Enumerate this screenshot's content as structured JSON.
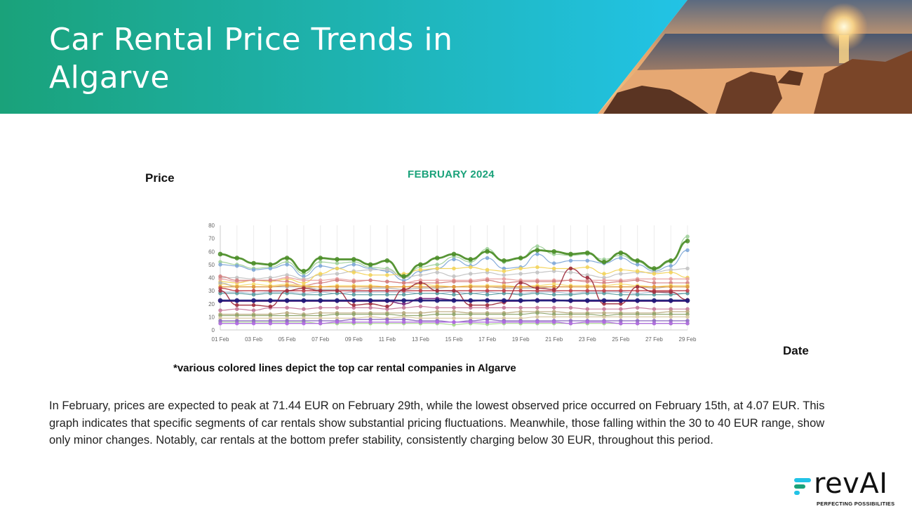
{
  "header": {
    "title": "Car Rental Price Trends in Algarve",
    "colors": {
      "gradient_start": "#1aa27a",
      "gradient_end": "#22c3e6"
    },
    "photo": "beach-sunset-photo"
  },
  "axis_labels": {
    "price": "Price",
    "date": "Date"
  },
  "footnote": "*various colored lines depict the top car rental companies in  Algarve",
  "summary": "In February, prices are expected to peak at 71.44 EUR on February 29th, while the lowest observed price occurred on February 15th, at 4.07 EUR. This graph indicates that specific segments of car rentals show substantial pricing fluctuations. Meanwhile, those falling within the 30 to 40 EUR range, show only minor changes. Notably, car rentals at the bottom prefer stability, consistently charging below 30 EUR, throughout this period.",
  "logo": {
    "word": "revAI",
    "tagline": "PERFECTING POSSIBILITIES",
    "mark_color": "#22c3e6",
    "mark_color_2": "#1aa27a"
  },
  "chart_data": {
    "type": "line",
    "title": "FEBRUARY 2024",
    "xlabel": "",
    "ylabel": "",
    "x": [
      "01 Feb",
      "02 Feb",
      "03 Feb",
      "04 Feb",
      "05 Feb",
      "06 Feb",
      "07 Feb",
      "08 Feb",
      "09 Feb",
      "10 Feb",
      "11 Feb",
      "12 Feb",
      "13 Feb",
      "14 Feb",
      "15 Feb",
      "16 Feb",
      "17 Feb",
      "18 Feb",
      "19 Feb",
      "20 Feb",
      "21 Feb",
      "22 Feb",
      "23 Feb",
      "24 Feb",
      "25 Feb",
      "26 Feb",
      "27 Feb",
      "28 Feb",
      "29 Feb"
    ],
    "x_ticks": [
      "01 Feb",
      "03 Feb",
      "05 Feb",
      "07 Feb",
      "09 Feb",
      "11 Feb",
      "13 Feb",
      "15 Feb",
      "17 Feb",
      "19 Feb",
      "21 Feb",
      "23 Feb",
      "25 Feb",
      "27 Feb",
      "29 Feb"
    ],
    "ylim": [
      0,
      80
    ],
    "y_ticks": [
      0,
      10,
      20,
      30,
      40,
      50,
      60,
      70,
      80
    ],
    "grid": "vertical",
    "legend": "none",
    "series": [
      {
        "color": "#4e8f2a",
        "width": 2.8,
        "values": [
          58,
          55,
          51,
          50,
          55,
          45,
          55,
          54,
          54,
          50,
          53,
          41,
          50,
          55,
          58,
          54,
          60,
          53,
          55,
          61,
          60,
          58,
          59,
          52,
          59,
          53,
          47,
          53,
          68
        ]
      },
      {
        "color": "#9fd09a",
        "width": 1.2,
        "values": [
          52,
          50,
          47,
          48,
          52,
          43,
          52,
          51,
          52,
          48,
          47,
          40,
          48,
          50,
          56,
          52,
          62,
          52,
          55,
          64,
          58,
          57,
          58,
          54,
          57,
          52,
          46,
          52,
          71.44
        ]
      },
      {
        "color": "#7fa8d8",
        "width": 1.2,
        "values": [
          50,
          49,
          46,
          47,
          50,
          41,
          49,
          47,
          50,
          47,
          45,
          38,
          45,
          47,
          54,
          49,
          55,
          47,
          48,
          58,
          51,
          53,
          53,
          51,
          55,
          50,
          45,
          49,
          61
        ]
      },
      {
        "color": "#c3c3c3",
        "width": 1.2,
        "values": [
          40,
          40,
          39,
          40,
          42,
          39,
          42,
          43,
          45,
          46,
          46,
          40,
          42,
          44,
          41,
          43,
          44,
          42,
          43,
          44,
          45,
          44,
          42,
          40,
          43,
          44,
          44,
          46,
          47
        ]
      },
      {
        "color": "#f2d35a",
        "width": 1.2,
        "values": [
          37,
          36,
          38,
          37,
          39,
          36,
          43,
          47,
          44,
          42,
          42,
          43,
          46,
          47,
          47,
          48,
          46,
          45,
          47,
          48,
          47,
          47,
          48,
          43,
          46,
          45,
          43,
          44,
          40
        ]
      },
      {
        "color": "#e8a0a0",
        "width": 1.2,
        "values": [
          39,
          37,
          38,
          38,
          40,
          38,
          38,
          39,
          38,
          38,
          37,
          36,
          38,
          38,
          38,
          38,
          39,
          39,
          38,
          38,
          38,
          38,
          38,
          38,
          38,
          39,
          39,
          39,
          39
        ]
      },
      {
        "color": "#d47f7f",
        "width": 1.2,
        "values": [
          41,
          38,
          38,
          38,
          37,
          34,
          36,
          38,
          37,
          38,
          37,
          36,
          36,
          36,
          37,
          37,
          38,
          36,
          37,
          37,
          37,
          38,
          37,
          36,
          37,
          38,
          36,
          36,
          36
        ]
      },
      {
        "color": "#e39a3a",
        "width": 1.4,
        "values": [
          33,
          33,
          33,
          33,
          34,
          33,
          33,
          33,
          33,
          33,
          33,
          33,
          33,
          33,
          33,
          33,
          33,
          33,
          33,
          33,
          33,
          33,
          33,
          33,
          33,
          33,
          33,
          33,
          33
        ]
      },
      {
        "color": "#f5dc6e",
        "width": 1.2,
        "values": [
          35,
          34,
          35,
          34,
          35,
          34,
          33,
          34,
          34,
          34,
          33,
          33,
          35,
          34,
          33,
          34,
          34,
          34,
          33,
          34,
          35,
          34,
          34,
          34,
          35,
          34,
          33,
          34,
          34
        ]
      },
      {
        "color": "#b0b0b0",
        "width": 1.2,
        "values": [
          36,
          33,
          33,
          33,
          33,
          33,
          31,
          31,
          31,
          32,
          32,
          31,
          32,
          32,
          33,
          33,
          33,
          32,
          32,
          32,
          33,
          33,
          33,
          33,
          33,
          33,
          32,
          33,
          33
        ]
      },
      {
        "color": "#c0404a",
        "width": 1.4,
        "values": [
          32,
          30,
          30,
          30,
          30,
          30,
          30,
          30,
          30,
          30,
          30,
          30,
          30,
          30,
          30,
          30,
          30,
          30,
          30,
          30,
          30,
          30,
          30,
          30,
          30,
          30,
          30,
          30,
          30
        ]
      },
      {
        "color": "#a03040",
        "width": 1.4,
        "values": [
          30,
          19,
          19,
          18,
          30,
          32,
          30,
          30,
          19,
          20,
          18,
          31,
          36,
          30,
          30,
          19,
          19,
          21,
          36,
          32,
          31,
          47,
          40,
          20,
          20,
          33,
          29,
          29,
          23
        ]
      },
      {
        "color": "#a8b8d0",
        "width": 1.2,
        "values": [
          29,
          29,
          28,
          29,
          29,
          28,
          29,
          28,
          29,
          29,
          29,
          29,
          28,
          28,
          29,
          28,
          29,
          28,
          28,
          29,
          29,
          28,
          29,
          29,
          29,
          28,
          29,
          28,
          28
        ]
      },
      {
        "color": "#5a9ea0",
        "width": 1.2,
        "values": [
          28,
          28,
          27,
          28,
          28,
          27,
          27,
          28,
          27,
          27,
          27,
          27,
          28,
          28,
          27,
          28,
          27,
          28,
          27,
          28,
          27,
          27,
          28,
          28,
          27,
          27,
          27,
          27,
          28
        ]
      },
      {
        "color": "#1f1a7a",
        "width": 2.6,
        "values": [
          22.5,
          22.5,
          22.5,
          22.5,
          22.5,
          22.5,
          22.5,
          22.5,
          22.5,
          22.5,
          22.5,
          22.5,
          22.5,
          22.5,
          22.5,
          22.5,
          22.5,
          22.5,
          22.5,
          22.5,
          22.5,
          22.5,
          22.5,
          22.5,
          22.5,
          22.5,
          22.5,
          22.5,
          22.5
        ]
      },
      {
        "color": "#7a2a80",
        "width": 1.6,
        "values": [
          22,
          22,
          22,
          22,
          22,
          22,
          22,
          22,
          22,
          22,
          22,
          20,
          24,
          24,
          23,
          22,
          23,
          22,
          22,
          23,
          23,
          22,
          22,
          22,
          22,
          22,
          22,
          22,
          22
        ]
      },
      {
        "color": "#c77a9a",
        "width": 1.2,
        "values": [
          15,
          16,
          15,
          17,
          17,
          16,
          17,
          17,
          17,
          17,
          16,
          17,
          18,
          17,
          17,
          17,
          17,
          17,
          17,
          17,
          17,
          17,
          16,
          16,
          16,
          17,
          16,
          16,
          16
        ]
      },
      {
        "color": "#b7a77a",
        "width": 1.2,
        "values": [
          12,
          12,
          12,
          12,
          13,
          12,
          13,
          13,
          13,
          13,
          13,
          13,
          13,
          14,
          14,
          13,
          13,
          13,
          14,
          14,
          14,
          13,
          13,
          13,
          13,
          13,
          13,
          14,
          14
        ]
      },
      {
        "color": "#8fa56a",
        "width": 1.2,
        "values": [
          11,
          11,
          11,
          11,
          11,
          11,
          11,
          12,
          12,
          12,
          12,
          11,
          11,
          12,
          12,
          12,
          12,
          12,
          12,
          13,
          12,
          12,
          12,
          11,
          12,
          12,
          12,
          12,
          12
        ]
      },
      {
        "color": "#d8c8a0",
        "width": 1.2,
        "values": [
          9,
          9,
          9,
          9,
          9,
          9,
          9,
          9,
          9,
          10,
          9,
          10,
          9,
          9,
          9,
          9,
          9,
          9,
          9,
          10,
          10,
          10,
          10,
          10,
          10,
          10,
          10,
          10,
          10
        ]
      },
      {
        "color": "#8c6ac0",
        "width": 1.4,
        "values": [
          7,
          7,
          7,
          7,
          7,
          7,
          7,
          7,
          8,
          8,
          8,
          8,
          7,
          7,
          6,
          7,
          8,
          7,
          7,
          7,
          7,
          7,
          7,
          7,
          7,
          7,
          7,
          7,
          7
        ]
      },
      {
        "color": "#a6d88c",
        "width": 1.2,
        "values": [
          6,
          6,
          6,
          6,
          6,
          6,
          5,
          5,
          5,
          5,
          5,
          5,
          5,
          5,
          4.07,
          5,
          4.5,
          5,
          5,
          5,
          5,
          5,
          5,
          5,
          5,
          5,
          5,
          5,
          5
        ]
      },
      {
        "color": "#b06ae0",
        "width": 1.4,
        "values": [
          5,
          5,
          5,
          5,
          5,
          5,
          5,
          6,
          6,
          6,
          6,
          6,
          6,
          6,
          6,
          6,
          6,
          6,
          6,
          6,
          6,
          5,
          6,
          6,
          5,
          5,
          5,
          5,
          5
        ]
      }
    ]
  }
}
